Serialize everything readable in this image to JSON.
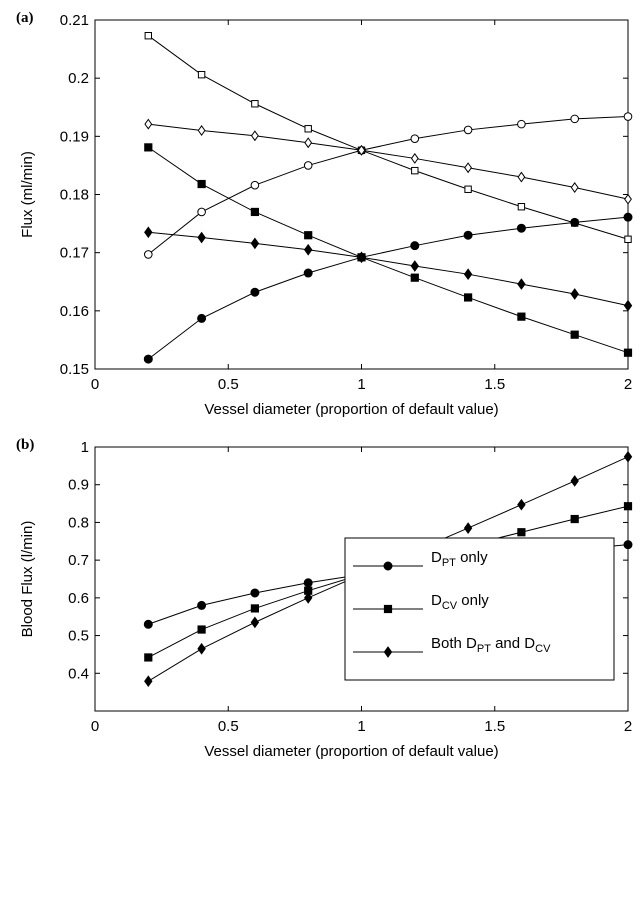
{
  "chart_data": [
    {
      "type": "line",
      "panel_label": "(a)",
      "x_label": "Vessel diameter (proportion of default value)",
      "y_label": "Flux (ml/min)",
      "x": [
        0.2,
        0.4,
        0.6,
        0.8,
        1.0,
        1.2,
        1.4,
        1.6,
        1.8,
        2.0
      ],
      "xlim": [
        0,
        2
      ],
      "xticks": [
        0,
        0.5,
        1,
        1.5,
        2
      ],
      "ylim": [
        0.15,
        0.21
      ],
      "yticks": [
        0.15,
        0.16,
        0.17,
        0.18,
        0.19,
        0.2,
        0.21
      ],
      "series": [
        {
          "color": "#000000",
          "marker": "square",
          "filled": false,
          "values": [
            0.2073,
            0.2006,
            0.1956,
            0.1913,
            0.1876,
            0.1841,
            0.1809,
            0.1779,
            0.1751,
            0.1723
          ]
        },
        {
          "color": "#000000",
          "marker": "circle",
          "filled": false,
          "values": [
            0.1697,
            0.177,
            0.1816,
            0.185,
            0.1876,
            0.1896,
            0.1911,
            0.1921,
            0.193,
            0.1934
          ]
        },
        {
          "color": "#000000",
          "marker": "diamond",
          "filled": false,
          "values": [
            0.1921,
            0.191,
            0.1901,
            0.1889,
            0.1876,
            0.1862,
            0.1846,
            0.183,
            0.1812,
            0.1792
          ]
        },
        {
          "color": "#000000",
          "marker": "square",
          "filled": true,
          "values": [
            0.1881,
            0.1818,
            0.177,
            0.173,
            0.1692,
            0.1657,
            0.1623,
            0.159,
            0.1559,
            0.1528
          ]
        },
        {
          "color": "#000000",
          "marker": "circle",
          "filled": true,
          "values": [
            0.1517,
            0.1587,
            0.1632,
            0.1665,
            0.1692,
            0.1712,
            0.173,
            0.1742,
            0.1752,
            0.1761
          ]
        },
        {
          "color": "#000000",
          "marker": "diamond",
          "filled": true,
          "values": [
            0.1735,
            0.1726,
            0.1716,
            0.1705,
            0.1692,
            0.1677,
            0.1663,
            0.1646,
            0.1629,
            0.1609
          ]
        }
      ]
    },
    {
      "type": "line",
      "panel_label": "(b)",
      "x_label": "Vessel diameter (proportion of default value)",
      "y_label": "Blood Flux (l/min)",
      "x": [
        0.2,
        0.4,
        0.6,
        0.8,
        1.0,
        1.2,
        1.4,
        1.6,
        1.8,
        2.0
      ],
      "xlim": [
        0,
        2
      ],
      "xticks": [
        0,
        0.5,
        1,
        1.5,
        2
      ],
      "ylim": [
        0.3,
        1
      ],
      "yticks": [
        0.4,
        0.5,
        0.6,
        0.7,
        0.8,
        0.9,
        1
      ],
      "legend": "lower right",
      "series": [
        {
          "name": "D_PT only",
          "color": "#000000",
          "marker": "circle",
          "filled": true,
          "values": [
            0.53,
            0.58,
            0.613,
            0.64,
            0.662,
            0.681,
            0.698,
            0.714,
            0.728,
            0.741
          ]
        },
        {
          "name": "D_CV only",
          "color": "#000000",
          "marker": "square",
          "filled": true,
          "values": [
            0.442,
            0.516,
            0.572,
            0.619,
            0.662,
            0.702,
            0.739,
            0.774,
            0.809,
            0.843
          ]
        },
        {
          "name": "Both D_PT and D_CV",
          "color": "#000000",
          "marker": "diamond",
          "filled": true,
          "values": [
            0.379,
            0.465,
            0.535,
            0.6,
            0.662,
            0.724,
            0.785,
            0.847,
            0.91,
            0.974
          ]
        }
      ]
    }
  ]
}
